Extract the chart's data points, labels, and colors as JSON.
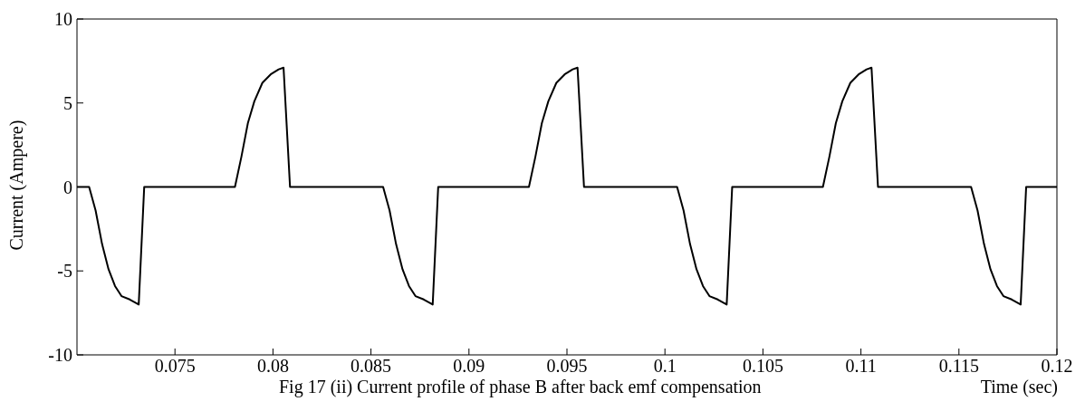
{
  "chart_data": {
    "type": "line",
    "xlabel": "Time (sec)",
    "ylabel": "Current (Ampere)",
    "annotations": [
      "Fig 17 (ii) Current profile of phase B after back emf compensation"
    ],
    "xlim": [
      0.07,
      0.12
    ],
    "xticks": [
      0.075,
      0.08,
      0.085,
      0.09,
      0.095,
      0.1,
      0.105,
      0.11,
      0.115,
      0.12
    ],
    "ylim": [
      -10,
      10
    ],
    "yticks": [
      -10,
      -5,
      0,
      5,
      10
    ],
    "grid": false,
    "legend": false,
    "marker": "none",
    "line_style": "solid",
    "series": [
      {
        "color": "#000000",
        "x": [
          0.07,
          0.07062,
          0.07095,
          0.07128,
          0.07161,
          0.07194,
          0.07227,
          0.07269,
          0.07315,
          0.07343,
          0.07806,
          0.07839,
          0.07872,
          0.07905,
          0.07946,
          0.07988,
          0.08029,
          0.08054,
          0.08087,
          0.08562,
          0.08595,
          0.08628,
          0.08661,
          0.08694,
          0.08727,
          0.08769,
          0.08815,
          0.08843,
          0.09306,
          0.09339,
          0.09372,
          0.09405,
          0.09446,
          0.09488,
          0.09529,
          0.09554,
          0.09587,
          0.10062,
          0.10095,
          0.10128,
          0.10161,
          0.10194,
          0.10227,
          0.10269,
          0.10315,
          0.10343,
          0.10806,
          0.10839,
          0.10872,
          0.10905,
          0.10946,
          0.10988,
          0.11029,
          0.11054,
          0.11087,
          0.11562,
          0.11595,
          0.11628,
          0.11661,
          0.11694,
          0.11727,
          0.11769,
          0.11815,
          0.11843,
          0.12
        ],
        "values": [
          0,
          0,
          -1.4,
          -3.4,
          -4.9,
          -5.9,
          -6.5,
          -6.7,
          -7.0,
          0,
          0,
          1.8,
          3.8,
          5.1,
          6.2,
          6.7,
          7.0,
          7.1,
          0,
          0,
          -1.4,
          -3.4,
          -4.9,
          -5.9,
          -6.5,
          -6.7,
          -7.0,
          0,
          0,
          1.8,
          3.8,
          5.1,
          6.2,
          6.7,
          7.0,
          7.1,
          0,
          0,
          -1.4,
          -3.4,
          -4.9,
          -5.9,
          -6.5,
          -6.7,
          -7.0,
          0,
          0,
          1.8,
          3.8,
          5.1,
          6.2,
          6.7,
          7.0,
          7.1,
          0,
          0,
          -1.4,
          -3.4,
          -4.9,
          -5.9,
          -6.5,
          -6.7,
          -7.0,
          0,
          0
        ]
      }
    ]
  }
}
